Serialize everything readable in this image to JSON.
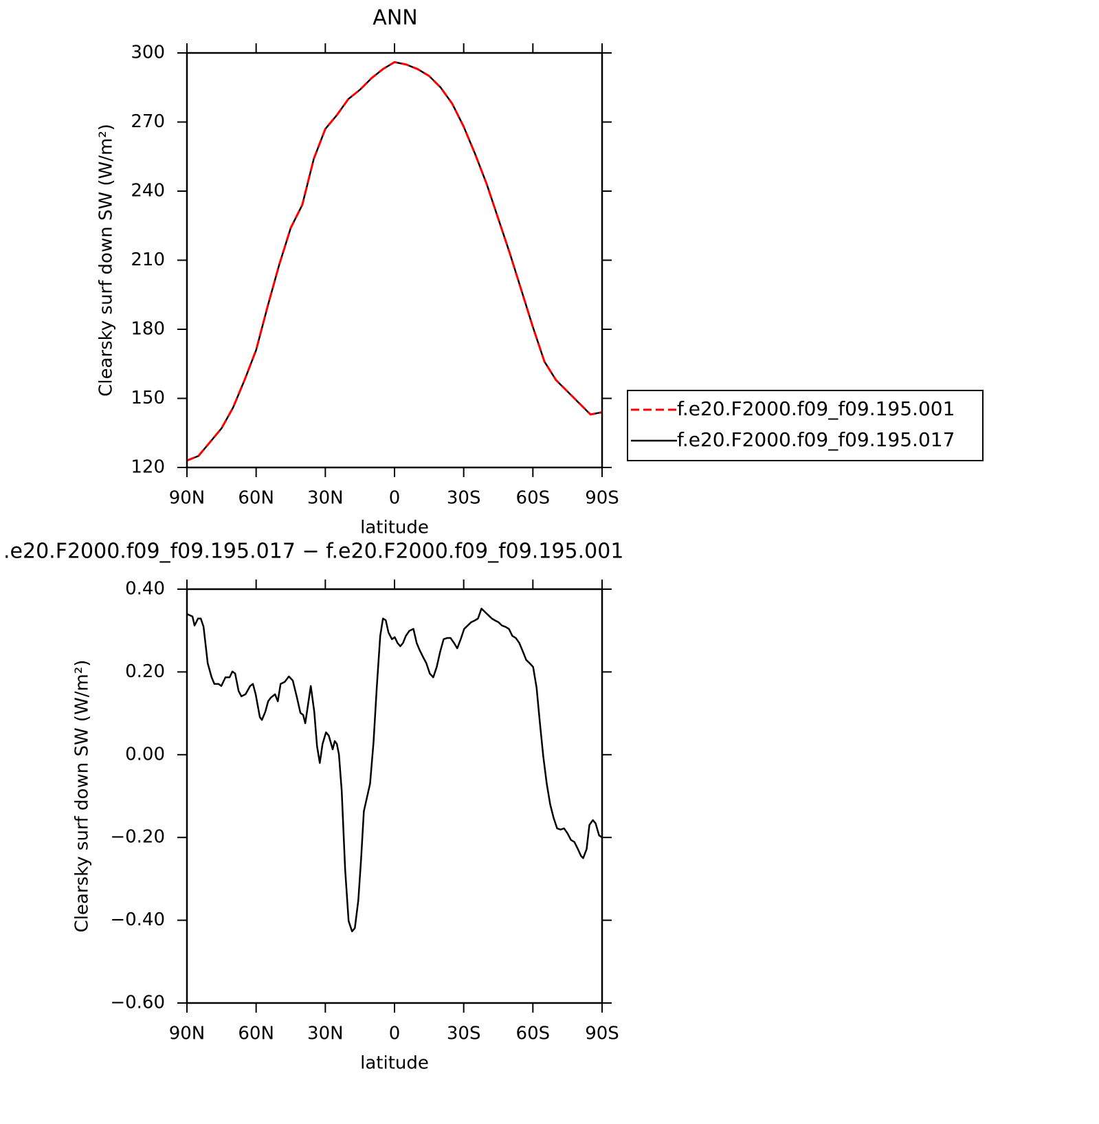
{
  "chart_data": [
    {
      "type": "line",
      "title": "ANN",
      "x_label": "latitude",
      "y_label": "Clearsky surf down SW (W/m²)",
      "x": [
        90,
        85,
        80,
        75,
        70,
        65,
        60,
        55,
        50,
        45,
        40,
        35,
        30,
        25,
        20,
        15,
        10,
        5,
        0,
        -5,
        -10,
        -15,
        -20,
        -25,
        -30,
        -35,
        -40,
        -45,
        -50,
        -55,
        -60,
        -65,
        -70,
        -75,
        -80,
        -85,
        -90
      ],
      "xlim": [
        90,
        -90
      ],
      "xticks": [
        {
          "value": 90,
          "label": "90N"
        },
        {
          "value": 60,
          "label": "60N"
        },
        {
          "value": 30,
          "label": "30N"
        },
        0,
        {
          "value": -30,
          "label": "30S"
        },
        {
          "value": -60,
          "label": "60S"
        },
        {
          "value": -90,
          "label": "90S"
        }
      ],
      "ylim": [
        120,
        300
      ],
      "yticks": [
        120,
        150,
        180,
        210,
        240,
        270,
        300
      ],
      "legend": "right",
      "series": [
        {
          "name": "f.e20.F2000.f09_f09.195.001",
          "color": "#ff0000",
          "dash": "dashed",
          "values": [
            123,
            125,
            131,
            137,
            146,
            158,
            171,
            190,
            208,
            224,
            234,
            254,
            267,
            273,
            280,
            284,
            289,
            293,
            296,
            295,
            293,
            290,
            285,
            278,
            268,
            256,
            243,
            228,
            213,
            197,
            181,
            166,
            158,
            153,
            148,
            143,
            144
          ]
        },
        {
          "name": "f.e20.F2000.f09_f09.195.017",
          "color": "#000000",
          "dash": "solid",
          "values": [
            123,
            125,
            131,
            137,
            146,
            158,
            171,
            190,
            208,
            224,
            234,
            254,
            267,
            273,
            280,
            284,
            289,
            293,
            296,
            295,
            293,
            290,
            285,
            278,
            268,
            256,
            243,
            228,
            213,
            197,
            181,
            166,
            158,
            153,
            148,
            143,
            144
          ]
        }
      ]
    },
    {
      "type": "line",
      "title": ".e20.F2000.f09_f09.195.017 − f.e20.F2000.f09_f09.195.001",
      "x_label": "latitude",
      "y_label": "Clearsky surf down SW (W/m²)",
      "x": [
        90,
        87.6,
        86.7,
        85.2,
        84,
        82.8,
        81,
        79.3,
        78.1,
        76.3,
        75.1,
        73.3,
        71.5,
        70.3,
        69.1,
        67.6,
        66.4,
        64.6,
        62.6,
        61.4,
        60.2,
        58.4,
        57.5,
        56,
        54.8,
        53.6,
        51.8,
        50.6,
        49.4,
        47.6,
        45.8,
        44.1,
        42.3,
        40.8,
        39.6,
        38.7,
        37.5,
        36.3,
        34.8,
        33.6,
        32.4,
        31.2,
        29.7,
        28.5,
        26.8,
        25.9,
        25,
        24.1,
        22.9,
        21.4,
        19.9,
        18.4,
        17.2,
        15.7,
        14.5,
        13.3,
        12.1,
        10.6,
        9.1,
        7.7,
        6.2,
        5,
        3.8,
        2.6,
        1.1,
        -0.1,
        -1.3,
        -2.5,
        -3.7,
        -4.9,
        -6.4,
        -8.2,
        -9.6,
        -10.8,
        -12.3,
        -13.8,
        -15.3,
        -16.8,
        -18.3,
        -19.8,
        -21.3,
        -22.8,
        -24.3,
        -25.8,
        -27.2,
        -28.7,
        -30.2,
        -31.7,
        -33.2,
        -34.7,
        -36.2,
        -37.7,
        -39.2,
        -40.7,
        -42.2,
        -43.7,
        -45.1,
        -46.6,
        -48.1,
        -49.6,
        -51.1,
        -52.6,
        -54.1,
        -55.6,
        -57.1,
        -58.6,
        -60.1,
        -61.6,
        -63,
        -64.5,
        -66,
        -67.5,
        -69,
        -70.5,
        -72,
        -73.5,
        -75,
        -76.5,
        -78,
        -79.5,
        -80.9,
        -81.8,
        -83.3,
        -84.5,
        -86,
        -87.2,
        -88.7,
        -90
      ],
      "xlim": [
        90,
        -90
      ],
      "xticks": [
        {
          "value": 90,
          "label": "90N"
        },
        {
          "value": 60,
          "label": "60N"
        },
        {
          "value": 30,
          "label": "30N"
        },
        0,
        {
          "value": -30,
          "label": "30S"
        },
        {
          "value": -60,
          "label": "60S"
        },
        {
          "value": -90,
          "label": "90S"
        }
      ],
      "ylim": [
        -0.6,
        0.4
      ],
      "yticks": [
        {
          "value": -0.6,
          "label": "−0.60"
        },
        {
          "value": -0.4,
          "label": "−0.40"
        },
        {
          "value": -0.2,
          "label": "−0.20"
        },
        {
          "value": 0,
          "label": "0.00"
        },
        {
          "value": 0.2,
          "label": "0.20"
        },
        {
          "value": 0.4,
          "label": "0.40"
        }
      ],
      "series": [
        {
          "color": "#000000",
          "dash": "solid",
          "values": [
            0.34,
            0.334,
            0.312,
            0.329,
            0.329,
            0.309,
            0.221,
            0.187,
            0.171,
            0.171,
            0.166,
            0.187,
            0.187,
            0.201,
            0.196,
            0.154,
            0.141,
            0.146,
            0.166,
            0.171,
            0.146,
            0.091,
            0.084,
            0.104,
            0.129,
            0.138,
            0.146,
            0.129,
            0.171,
            0.176,
            0.189,
            0.179,
            0.138,
            0.101,
            0.096,
            0.076,
            0.121,
            0.166,
            0.104,
            0.021,
            -0.02,
            0.026,
            0.054,
            0.046,
            0.013,
            0.033,
            0.026,
            0.001,
            -0.087,
            -0.278,
            -0.402,
            -0.427,
            -0.419,
            -0.352,
            -0.253,
            -0.137,
            -0.107,
            -0.07,
            0.03,
            0.162,
            0.287,
            0.329,
            0.325,
            0.295,
            0.279,
            0.284,
            0.27,
            0.262,
            0.27,
            0.287,
            0.299,
            0.304,
            0.27,
            0.254,
            0.237,
            0.221,
            0.196,
            0.187,
            0.212,
            0.249,
            0.279,
            0.282,
            0.282,
            0.27,
            0.257,
            0.279,
            0.304,
            0.312,
            0.32,
            0.324,
            0.329,
            0.353,
            0.345,
            0.337,
            0.329,
            0.324,
            0.32,
            0.312,
            0.309,
            0.304,
            0.287,
            0.282,
            0.27,
            0.25,
            0.229,
            0.221,
            0.212,
            0.162,
            0.079,
            -0.004,
            -0.07,
            -0.12,
            -0.153,
            -0.178,
            -0.181,
            -0.178,
            -0.19,
            -0.206,
            -0.211,
            -0.228,
            -0.245,
            -0.25,
            -0.228,
            -0.17,
            -0.158,
            -0.166,
            -0.195,
            -0.2
          ]
        }
      ]
    }
  ]
}
